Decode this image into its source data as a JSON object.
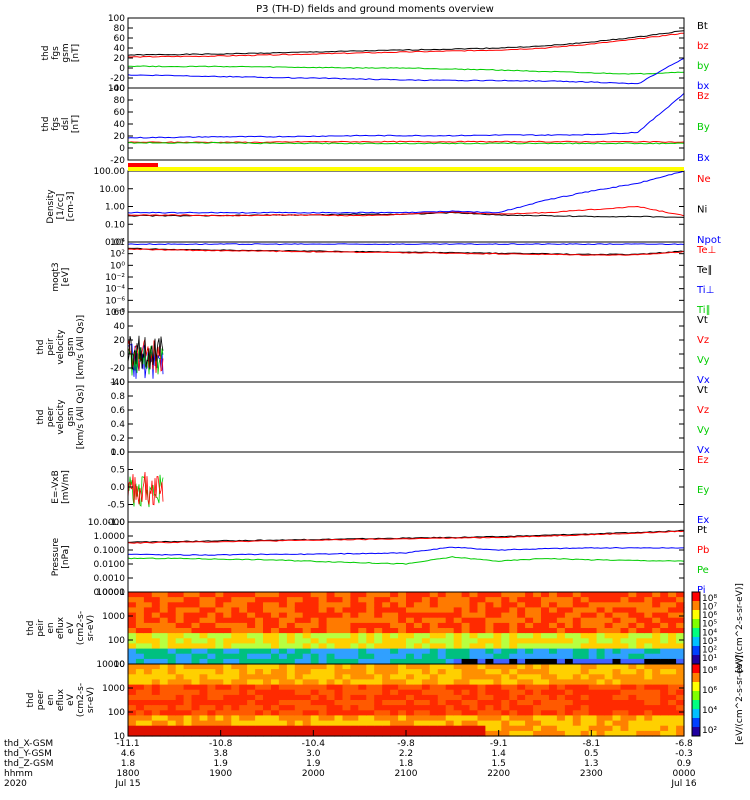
{
  "title": "P3 (TH-D) fields and ground moments overview",
  "panels": [
    {
      "id": "fgs-gsm",
      "ylabel": [
        "thd",
        "fgs",
        "gsm",
        "[nT]"
      ],
      "ticks": [
        "100",
        "80",
        "60",
        "40",
        "20",
        "0",
        "-20",
        "-40"
      ],
      "ylim": [
        -40,
        100
      ],
      "legend": [
        {
          "text": "Bt",
          "color": "#000000"
        },
        {
          "text": "bz",
          "color": "#ff0000"
        },
        {
          "text": "by",
          "color": "#00cc00"
        },
        {
          "text": "bx",
          "color": "#0000ff"
        }
      ],
      "series": [
        {
          "name": "Bt",
          "color": "#000000",
          "values": [
            26,
            27,
            28,
            30,
            32,
            34,
            36,
            38,
            40,
            44,
            52,
            62,
            75
          ]
        },
        {
          "name": "bz",
          "color": "#ff0000",
          "values": [
            22,
            23,
            24,
            26,
            28,
            30,
            32,
            34,
            36,
            40,
            48,
            58,
            70
          ]
        },
        {
          "name": "by",
          "color": "#00cc00",
          "values": [
            4,
            3,
            3,
            2,
            1,
            0,
            0,
            -2,
            -4,
            -7,
            -10,
            -12,
            -8
          ]
        },
        {
          "name": "bx",
          "color": "#0000ff",
          "values": [
            -14,
            -15,
            -17,
            -19,
            -20,
            -22,
            -24,
            -25,
            -25,
            -26,
            -28,
            -32,
            20
          ]
        }
      ]
    },
    {
      "id": "fgs-dsl",
      "ylabel": [
        "thd",
        "fgs",
        "dsl",
        "[nT]"
      ],
      "ticks": [
        "100",
        "80",
        "60",
        "40",
        "20",
        "0",
        "-20"
      ],
      "ylim": [
        -30,
        100
      ],
      "legend": [
        {
          "text": "Bz",
          "color": "#ff0000"
        },
        {
          "text": "By",
          "color": "#00cc00"
        },
        {
          "text": "Bx",
          "color": "#0000ff"
        }
      ],
      "series": [
        {
          "name": "Bz",
          "color": "#ff0000",
          "values": [
            2,
            2,
            2,
            2,
            3,
            3,
            3,
            3,
            3,
            3,
            3,
            3,
            2
          ]
        },
        {
          "name": "By",
          "color": "#00cc00",
          "values": [
            1,
            1,
            1,
            0,
            0,
            0,
            0,
            0,
            0,
            0,
            0,
            0,
            0
          ]
        },
        {
          "name": "Bx",
          "color": "#0000ff",
          "values": [
            10,
            11,
            12,
            12,
            13,
            14,
            14,
            14,
            15,
            15,
            16,
            20,
            90
          ]
        }
      ]
    },
    {
      "id": "density",
      "ylabel": [
        "Density",
        "[1/cc]",
        "[cm-3]"
      ],
      "ticks": [
        "100.00",
        "10.00",
        "1.00",
        "0.10",
        "0.01"
      ],
      "ylim": [
        -2.3,
        2.3
      ],
      "log": true,
      "legend": [
        {
          "text": "Ne",
          "color": "#ff0000"
        },
        {
          "text": "Ni",
          "color": "#000000"
        },
        {
          "text": "Npot",
          "color": "#0000ff"
        }
      ],
      "series": [
        {
          "name": "Ni",
          "color": "#000000",
          "values": [
            -0.6,
            -0.6,
            -0.6,
            -0.55,
            -0.55,
            -0.5,
            -0.5,
            -0.4,
            -0.55,
            -0.6,
            -0.65,
            -0.65,
            -0.7
          ]
        },
        {
          "name": "Ne",
          "color": "#ff0000",
          "values": [
            -0.55,
            -0.55,
            -0.6,
            -0.55,
            -0.55,
            -0.6,
            -0.5,
            -0.35,
            -0.5,
            -0.4,
            -0.2,
            0.0,
            -0.6
          ]
        },
        {
          "name": "Npot",
          "color": "#0000ff",
          "values": [
            -0.4,
            -0.4,
            -0.4,
            -0.4,
            -0.4,
            -0.4,
            -0.4,
            -0.3,
            -0.4,
            0.4,
            1.0,
            1.5,
            2.3
          ]
        }
      ]
    },
    {
      "id": "temperature",
      "ylabel": [
        "moqt3",
        "[eV]"
      ],
      "ticks": [
        "10⁴",
        "10²",
        "10⁰",
        "10⁻²",
        "10⁻⁴",
        "10⁻⁶",
        "10⁻⁸"
      ],
      "ylim": [
        -9,
        4
      ],
      "legend": [
        {
          "text": "Te⊥",
          "color": "#ff0000"
        },
        {
          "text": "Te∥",
          "color": "#000000"
        },
        {
          "text": "Ti⊥",
          "color": "#0000ff"
        },
        {
          "text": "Ti∥",
          "color": "#00cc00"
        }
      ],
      "series": [
        {
          "name": "Ti",
          "color": "#0000ff",
          "values": [
            3.6,
            3.6,
            3.6,
            3.6,
            3.6,
            3.6,
            3.6,
            3.6,
            3.6,
            3.6,
            3.6,
            3.6,
            3.6
          ]
        },
        {
          "name": "Te",
          "color": "#000000",
          "values": [
            2.8,
            2.6,
            2.5,
            2.4,
            2.3,
            2.2,
            2.1,
            2.0,
            1.9,
            1.8,
            1.7,
            1.7,
            2.3
          ]
        },
        {
          "name": "Te2",
          "color": "#ff0000",
          "values": [
            2.7,
            2.5,
            2.4,
            2.3,
            2.2,
            2.1,
            2.0,
            1.9,
            1.8,
            1.7,
            1.6,
            1.6,
            2.2
          ]
        }
      ]
    },
    {
      "id": "peir-velocity",
      "ylabel": [
        "thd",
        "peir",
        "velocity",
        "gsm",
        "[km/s (All Qs)]"
      ],
      "ticks": [
        "60",
        "40",
        "20",
        "0",
        "-20",
        "-40"
      ],
      "ylim": [
        -40,
        60
      ],
      "legend": [
        {
          "text": "Vt",
          "color": "#000000"
        },
        {
          "text": "Vz",
          "color": "#ff0000"
        },
        {
          "text": "Vy",
          "color": "#00cc00"
        },
        {
          "text": "Vx",
          "color": "#0000ff"
        }
      ]
    },
    {
      "id": "peer-velocity",
      "ylabel": [
        "thd",
        "peer",
        "velocity",
        "gsm",
        "[km/s (All Qs)]"
      ],
      "ticks": [
        "1.0",
        "0.8",
        "0.6",
        "0.4",
        "0.2",
        "0.0"
      ],
      "ylim": [
        0,
        1
      ],
      "legend": [
        {
          "text": "Vt",
          "color": "#000000"
        },
        {
          "text": "Vz",
          "color": "#ff0000"
        },
        {
          "text": "Vy",
          "color": "#00cc00"
        },
        {
          "text": "Vx",
          "color": "#0000ff"
        }
      ]
    },
    {
      "id": "efield",
      "ylabel": [
        "E=-VxB",
        "[mV/m]"
      ],
      "ticks": [
        "1.0",
        "0.5",
        "0.0",
        "-0.5",
        "-1.0"
      ],
      "ylim": [
        -1,
        1
      ],
      "legend": [
        {
          "text": "Ez",
          "color": "#ff0000"
        },
        {
          "text": "Ey",
          "color": "#00cc00"
        },
        {
          "text": "Ex",
          "color": "#0000ff"
        }
      ]
    },
    {
      "id": "pressure",
      "ylabel": [
        "Pressure",
        "[nPa]"
      ],
      "ticks": [
        "10.0000",
        "1.0000",
        "0.1000",
        "0.0100",
        "0.0010",
        "0.0001"
      ],
      "ylim": [
        -4,
        1
      ],
      "legend": [
        {
          "text": "Pt",
          "color": "#000000"
        },
        {
          "text": "Pb",
          "color": "#ff0000"
        },
        {
          "text": "Pe",
          "color": "#00cc00"
        },
        {
          "text": "Pi",
          "color": "#0000ff"
        }
      ],
      "series": [
        {
          "name": "Pt",
          "color": "#000000",
          "values": [
            -0.45,
            -0.4,
            -0.35,
            -0.3,
            -0.25,
            -0.2,
            -0.15,
            -0.1,
            -0.05,
            0.05,
            0.15,
            0.25,
            0.4
          ]
        },
        {
          "name": "Pb",
          "color": "#ff0000",
          "values": [
            -0.5,
            -0.45,
            -0.4,
            -0.35,
            -0.3,
            -0.25,
            -0.2,
            -0.15,
            -0.1,
            0.0,
            0.1,
            0.2,
            0.35
          ]
        },
        {
          "name": "Pi",
          "color": "#0000ff",
          "values": [
            -1.3,
            -1.35,
            -1.35,
            -1.3,
            -1.3,
            -1.25,
            -1.2,
            -0.8,
            -1.0,
            -0.9,
            -0.85,
            -0.85,
            -0.85
          ]
        },
        {
          "name": "Pe",
          "color": "#00cc00",
          "values": [
            -1.6,
            -1.6,
            -1.65,
            -1.7,
            -1.8,
            -1.9,
            -2.0,
            -1.5,
            -1.8,
            -1.6,
            -1.7,
            -1.75,
            -1.8
          ]
        }
      ]
    },
    {
      "id": "peir-spec",
      "ylabel": [
        "thd",
        "peir",
        "en",
        "eflux",
        "eV",
        "(cm2-s-",
        "sr-eV)"
      ],
      "ticks": [
        "10000",
        "1000",
        "100",
        "10"
      ]
    },
    {
      "id": "peer-spec",
      "ylabel": [
        "thd",
        "peer",
        "en",
        "eflux",
        "eV",
        "(cm2-s-",
        "sr-eV)"
      ],
      "ticks": [
        "10000",
        "1000",
        "100",
        "10"
      ]
    }
  ],
  "colorbar_1": {
    "ticks": [
      "10⁸",
      "10⁷",
      "10⁶",
      "10⁵",
      "10⁴",
      "10³",
      "10²",
      "10¹"
    ],
    "label": "[eV/(cm^2-s-sr-eV)]"
  },
  "colorbar_2": {
    "ticks": [
      "10⁸",
      "10⁶",
      "10⁴",
      "10²"
    ],
    "label": "[eV/(cm^2-s-sr-eV)]"
  },
  "flags": {
    "colors": [
      "#ff0000",
      "#ffff00"
    ]
  },
  "x_axis": {
    "rows": [
      {
        "label": "thd_X-GSM",
        "values": [
          "-11.1",
          "-10.8",
          "-10.4",
          "-9.8",
          "-9.1",
          "-8.1",
          "-6.8"
        ]
      },
      {
        "label": "thd_Y-GSM",
        "values": [
          "4.6",
          "3.8",
          "3.0",
          "2.2",
          "1.4",
          "0.5",
          "-0.3"
        ]
      },
      {
        "label": "thd_Z-GSM",
        "values": [
          "1.8",
          "1.9",
          "1.9",
          "1.8",
          "1.5",
          "1.3",
          "0.9"
        ]
      },
      {
        "label": "hhmm",
        "values": [
          "1800",
          "1900",
          "2000",
          "2100",
          "2200",
          "2300",
          "0000"
        ]
      },
      {
        "label": "2020",
        "values": [
          "Jul 15",
          "",
          "",
          "",
          "",
          "",
          "Jul 16"
        ]
      }
    ]
  }
}
